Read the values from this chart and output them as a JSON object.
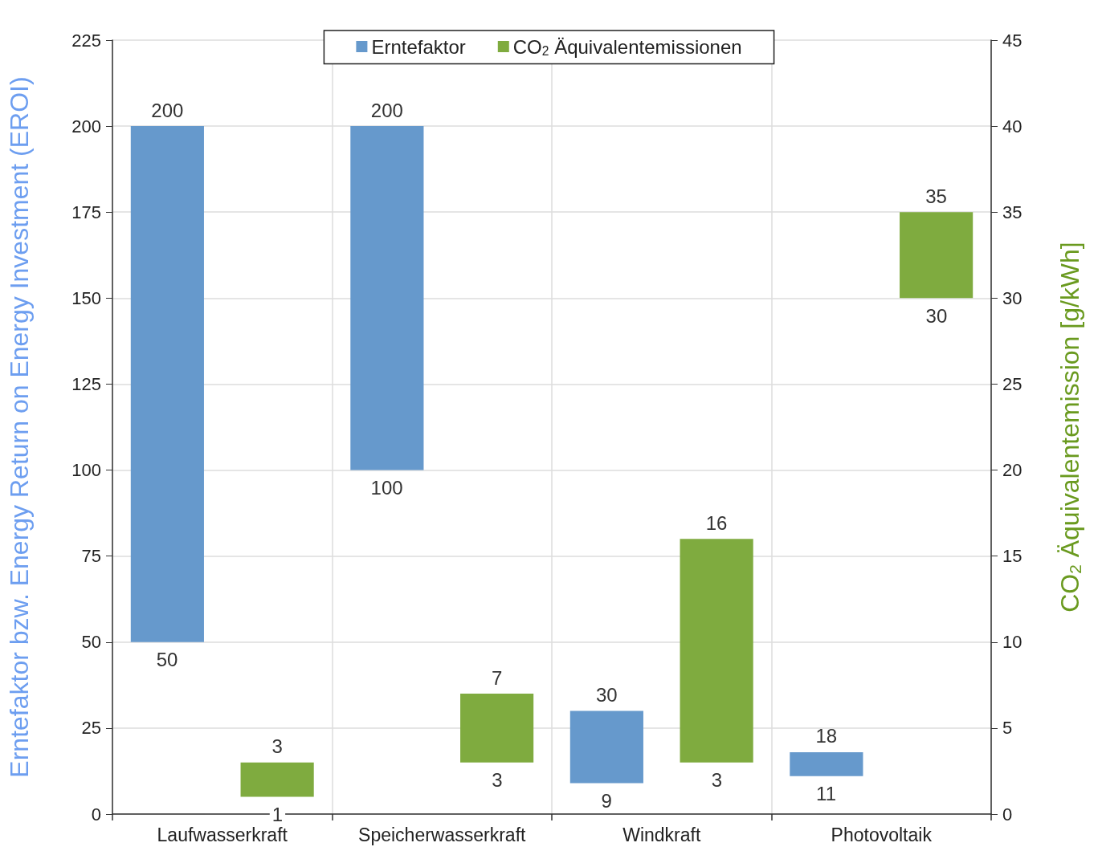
{
  "chart_data": {
    "type": "bar",
    "ylabel": "Erntefaktor bzw. Energy Return on Energy Investment (EROI)",
    "y2label": "CO$_{2}$ Äquivalentemission [g/kWh]",
    "categories": [
      "Laufwasserkraft",
      "Speicherwasserkraft",
      "Windkraft",
      "Photovoltaik"
    ],
    "series": [
      {
        "name": "Erntefaktor",
        "color": "#6699cc",
        "base": [
          50,
          100,
          9,
          11
        ],
        "values": [
          150,
          100,
          21,
          7
        ],
        "value_labels": [
          "200",
          "200",
          "30",
          "18"
        ]
      },
      {
        "name": "CO$_{2}$ Äquivalentemissionen",
        "color": "#7fab3f",
        "axis": "y2",
        "base": [
          1,
          3,
          3,
          30
        ],
        "values": [
          2,
          4,
          13,
          5
        ],
        "value_labels": [
          "3",
          "7",
          "16",
          "35"
        ]
      }
    ],
    "annotations": [
      "50",
      "100",
      "9",
      "11",
      "1",
      "3",
      "3",
      "30"
    ],
    "ylim": [
      0,
      225
    ],
    "yticks": [
      0,
      25,
      50,
      75,
      100,
      125,
      150,
      175,
      200,
      225
    ],
    "y2lim": [
      0,
      45
    ],
    "y2ticks": [
      0,
      5,
      10,
      15,
      20,
      25,
      30,
      35,
      40,
      45
    ],
    "grid": true,
    "legend": "top"
  }
}
